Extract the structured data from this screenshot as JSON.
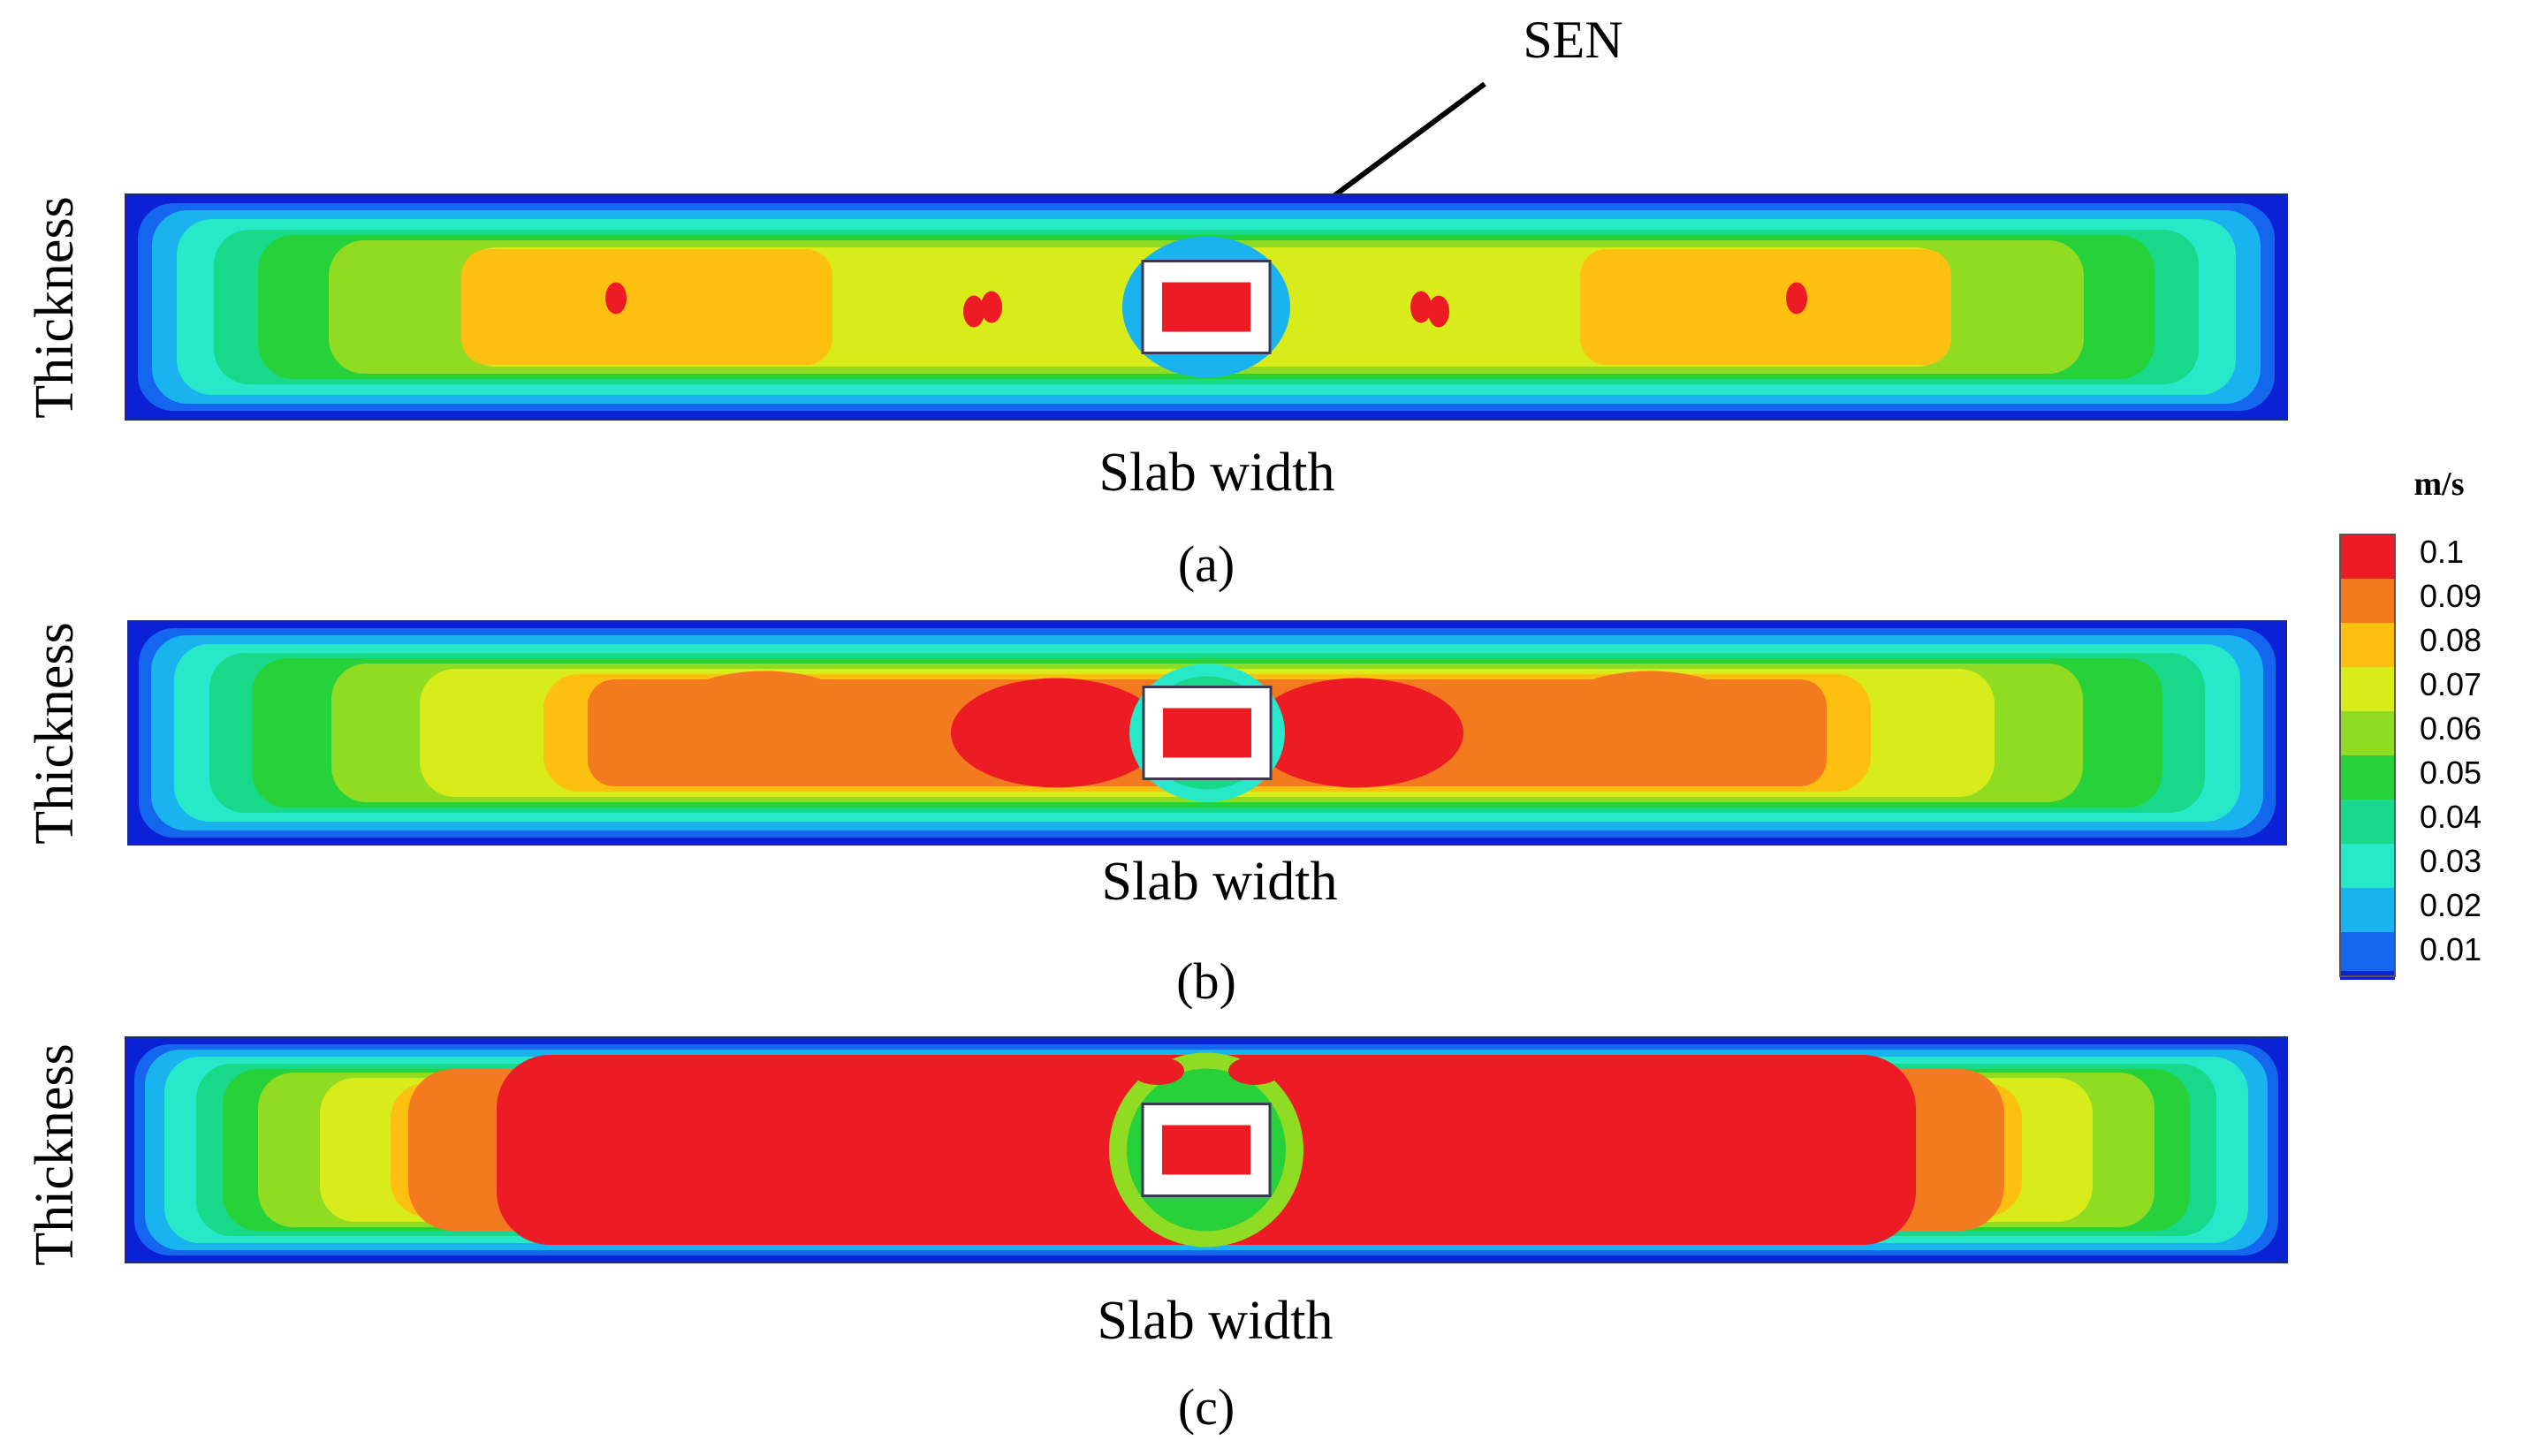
{
  "annotation": {
    "label": "SEN"
  },
  "panels": [
    {
      "id": "a",
      "caption": "(a)",
      "ylabel": "Thickness",
      "xlabel": "Slab width",
      "regime": "low"
    },
    {
      "id": "b",
      "caption": "(b)",
      "ylabel": "Thickness",
      "xlabel": "Slab width",
      "regime": "mid"
    },
    {
      "id": "c",
      "caption": "(c)",
      "ylabel": "Thickness",
      "xlabel": "Slab width",
      "regime": "high"
    }
  ],
  "colorbar": {
    "unit": "m/s",
    "levels": [
      {
        "label": "0.1",
        "color": "#ed1c24"
      },
      {
        "label": "0.09",
        "color": "#f47a20"
      },
      {
        "label": "0.08",
        "color": "#fdc010"
      },
      {
        "label": "0.07",
        "color": "#d7ec1a"
      },
      {
        "label": "0.06",
        "color": "#8fdc22"
      },
      {
        "label": "0.05",
        "color": "#26d13a"
      },
      {
        "label": "0.04",
        "color": "#18d98a"
      },
      {
        "label": "0.03",
        "color": "#27e8c8"
      },
      {
        "label": "0.02",
        "color": "#19b4f0"
      },
      {
        "label": "0.01",
        "color": "#1466ee"
      }
    ],
    "min_color": "#0b21d6"
  }
}
